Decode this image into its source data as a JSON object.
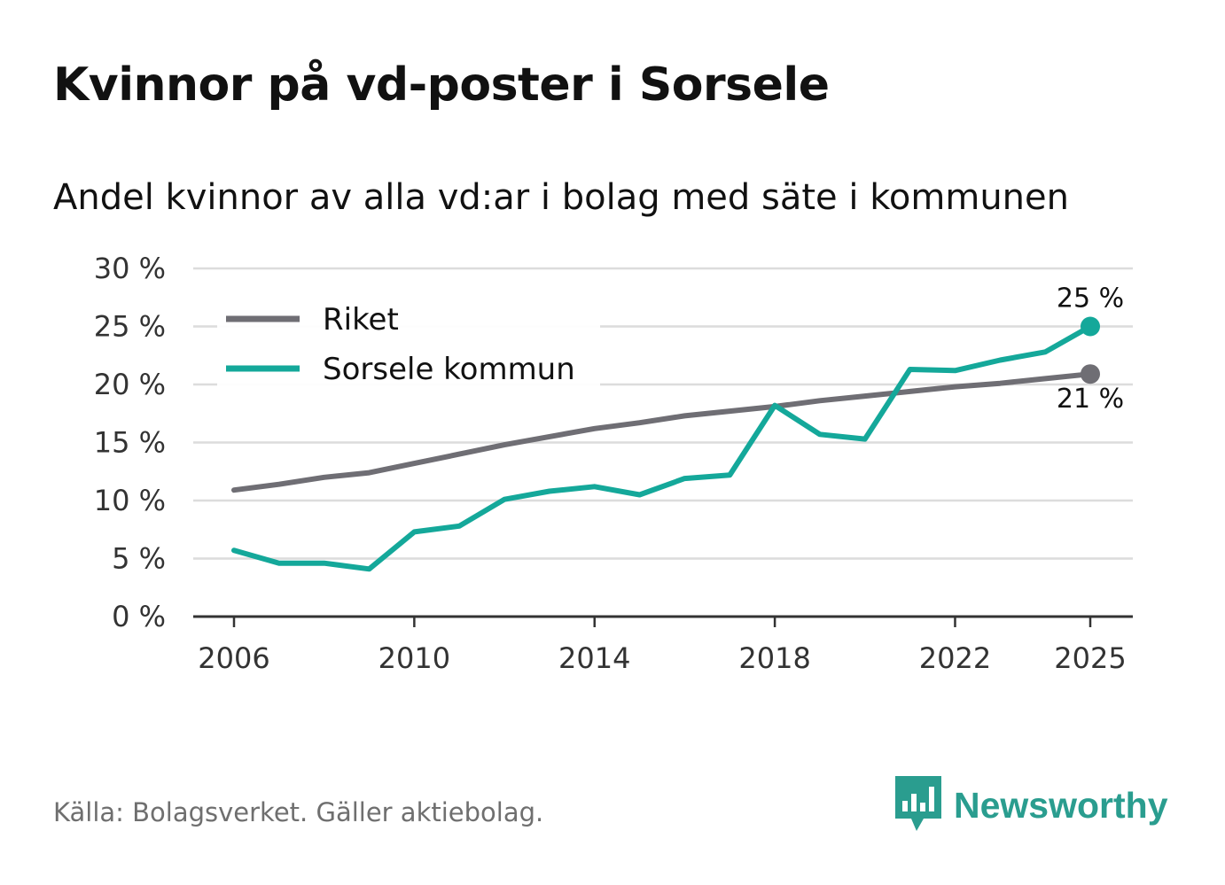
{
  "title": "Kvinnor på vd-poster i Sorsele",
  "subtitle": "Andel kvinnor av alla vd:ar i bolag med säte i kommunen",
  "source": "Källa: Bolagsverket. Gäller aktiebolag.",
  "brand": {
    "name": "Newsworthy",
    "icon": "newsworthy-logo-icon"
  },
  "colors": {
    "riket": "#6f6e74",
    "sorsele": "#14a89a",
    "grid": "#dcdcdc",
    "axis": "#333333"
  },
  "chart_data": {
    "type": "line",
    "title": "Kvinnor på vd-poster i Sorsele",
    "xlabel": "",
    "ylabel": "",
    "x": [
      2006,
      2007,
      2008,
      2009,
      2010,
      2011,
      2012,
      2013,
      2014,
      2015,
      2016,
      2017,
      2018,
      2019,
      2020,
      2021,
      2022,
      2023,
      2024,
      2025
    ],
    "xticks": [
      2006,
      2010,
      2014,
      2018,
      2022,
      2025
    ],
    "xtick_labels": [
      "2006",
      "2010",
      "2014",
      "2018",
      "2022",
      "2025"
    ],
    "ylim": [
      0,
      30
    ],
    "yticks": [
      0,
      5,
      10,
      15,
      20,
      25,
      30
    ],
    "ytick_labels": [
      "0 %",
      "5 %",
      "10 %",
      "15 %",
      "20 %",
      "25 %",
      "30 %"
    ],
    "grid": true,
    "legend_position": "top-left",
    "series": [
      {
        "name": "Riket",
        "color": "#6f6e74",
        "values": [
          10.9,
          11.4,
          12.0,
          12.4,
          13.2,
          14.0,
          14.8,
          15.5,
          16.2,
          16.7,
          17.3,
          17.7,
          18.1,
          18.6,
          19.0,
          19.4,
          19.8,
          20.1,
          20.5,
          20.9
        ],
        "end_label": "21 %"
      },
      {
        "name": "Sorsele kommun",
        "color": "#14a89a",
        "values": [
          5.7,
          4.6,
          4.6,
          4.1,
          7.3,
          7.8,
          10.1,
          10.8,
          11.2,
          10.5,
          11.9,
          12.2,
          18.2,
          15.7,
          15.3,
          21.3,
          21.2,
          22.1,
          22.8,
          25.0
        ],
        "end_label": "25 %"
      }
    ]
  }
}
